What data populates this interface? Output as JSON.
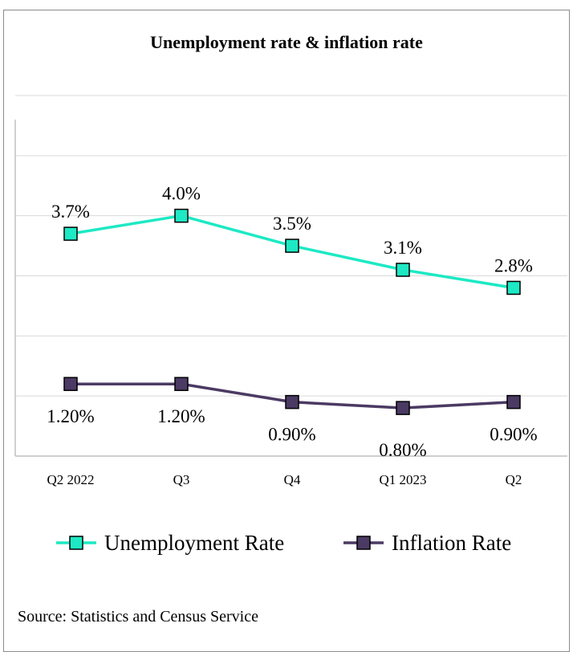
{
  "chart_data": {
    "type": "line",
    "title": "Unemployment rate & inflation rate",
    "xlabel": "",
    "ylabel": "",
    "categories": [
      "Q2 2022",
      "Q3",
      "Q4",
      "Q1 2023",
      "Q2"
    ],
    "ylim": [
      0,
      6
    ],
    "grid": true,
    "legend_placement": "bottom",
    "series": [
      {
        "name": "Unemployment Rate",
        "values": [
          3.7,
          4.0,
          3.5,
          3.1,
          2.8
        ],
        "labels": [
          "3.7%",
          "4.0%",
          "3.5%",
          "3.1%",
          "2.8%"
        ],
        "label_position": "above",
        "color": "#1de9c4"
      },
      {
        "name": "Inflation Rate",
        "values": [
          1.2,
          1.2,
          0.9,
          0.8,
          0.9
        ],
        "labels": [
          "1.20%",
          "1.20%",
          "0.90%",
          "0.80%",
          "0.90%"
        ],
        "label_position": "below",
        "color": "#4b3a63"
      }
    ]
  },
  "source_text": "Source: Statistics and Census Service"
}
